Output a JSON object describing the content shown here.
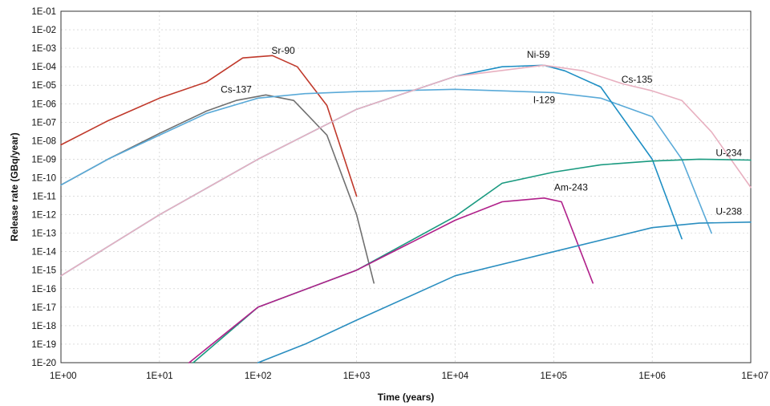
{
  "chart_data": {
    "type": "line",
    "title": "",
    "xlabel": "Time (years)",
    "ylabel": "Release rate (GBq/year)",
    "x_scale": "log",
    "y_scale": "log",
    "xlim": [
      1,
      10000000
    ],
    "ylim": [
      1e-20,
      0.1
    ],
    "grid": true,
    "x_ticks": [
      "1E+00",
      "1E+01",
      "1E+02",
      "1E+03",
      "1E+04",
      "1E+05",
      "1E+06",
      "1E+07"
    ],
    "y_ticks": [
      "1E-01",
      "1E-02",
      "1E-03",
      "1E-04",
      "1E-05",
      "1E-06",
      "1E-07",
      "1E-08",
      "1E-09",
      "1E-10",
      "1E-11",
      "1E-12",
      "1E-13",
      "1E-14",
      "1E-15",
      "1E-16",
      "1E-17",
      "1E-18",
      "1E-19",
      "1E-20"
    ],
    "series": [
      {
        "name": "Sr-90",
        "color": "#c0392b",
        "x": [
          1,
          3,
          10,
          30,
          70,
          140,
          250,
          500,
          1000
        ],
        "y": [
          6e-09,
          1.2e-07,
          2e-06,
          1.5e-05,
          0.0003,
          0.0004,
          0.0001,
          8e-07,
          1e-11
        ]
      },
      {
        "name": "Cs-137",
        "color": "#707070",
        "x": [
          1,
          3,
          10,
          30,
          60,
          120,
          230,
          500,
          1000,
          1500
        ],
        "y": [
          4e-11,
          1e-09,
          2.5e-08,
          4e-07,
          1.5e-06,
          3e-06,
          1.5e-06,
          2e-08,
          1e-12,
          2e-16
        ]
      },
      {
        "name": "I-129",
        "color": "#5aaad8",
        "x": [
          1,
          3,
          10,
          30,
          100,
          300,
          1000,
          10000,
          100000,
          300000,
          1000000,
          2000000,
          4000000
        ],
        "y": [
          4e-11,
          1e-09,
          2e-08,
          3e-07,
          2e-06,
          3.5e-06,
          4.5e-06,
          6e-06,
          4e-06,
          2e-06,
          2e-07,
          1e-09,
          1e-13
        ]
      },
      {
        "name": "Ni-59",
        "color": "#1f8fc4",
        "x": [
          1,
          10,
          100,
          1000,
          10000,
          30000,
          80000,
          130000,
          300000,
          1000000,
          2000000
        ],
        "y": [
          5e-16,
          1e-12,
          1e-09,
          5e-07,
          3e-05,
          0.0001,
          0.00012,
          6e-05,
          8e-06,
          1e-09,
          5e-14
        ]
      },
      {
        "name": "Cs-135",
        "color": "#e8b0c0",
        "x": [
          1,
          10,
          100,
          1000,
          10000,
          80000,
          200000,
          500000,
          1000000,
          2000000,
          4000000,
          10000000
        ],
        "y": [
          5e-16,
          1e-12,
          1e-09,
          5e-07,
          3e-05,
          0.00012,
          6e-05,
          1.2e-05,
          5e-06,
          1.5e-06,
          3e-08,
          3e-11
        ]
      },
      {
        "name": "U-234",
        "color": "#1a9a80",
        "x": [
          22,
          100,
          1000,
          10000,
          30000,
          100000,
          300000,
          1000000,
          3000000,
          10000000
        ],
        "y": [
          1e-20,
          1e-17,
          1e-15,
          8e-13,
          5e-11,
          2e-10,
          5e-10,
          8e-10,
          1e-09,
          9e-10
        ]
      },
      {
        "name": "Am-243",
        "color": "#b0208a",
        "x": [
          20,
          100,
          1000,
          10000,
          30000,
          80000,
          120000,
          250000
        ],
        "y": [
          1e-20,
          1e-17,
          1e-15,
          5e-13,
          5e-12,
          8e-12,
          5e-12,
          2e-16
        ]
      },
      {
        "name": "U-238",
        "color": "#2a8ec0",
        "x": [
          100,
          300,
          1000,
          10000,
          100000,
          1000000,
          3000000,
          10000000
        ],
        "y": [
          1e-20,
          1e-19,
          2e-18,
          5e-16,
          1e-14,
          2e-13,
          3.5e-13,
          4e-13
        ]
      }
    ],
    "annotations": [
      {
        "text": "Sr-90",
        "x": 180,
        "y": 0.0005
      },
      {
        "text": "Cs-137",
        "x": 60,
        "y": 4e-06
      },
      {
        "text": "Ni-59",
        "x": 70000,
        "y": 0.0003
      },
      {
        "text": "Cs-135",
        "x": 700000,
        "y": 1.4e-05
      },
      {
        "text": "I-129",
        "x": 80000,
        "y": 1.1e-06
      },
      {
        "text": "U-234",
        "x": 6000000,
        "y": 1.5e-09
      },
      {
        "text": "Am-243",
        "x": 150000,
        "y": 2e-11
      },
      {
        "text": "U-238",
        "x": 6000000,
        "y": 1e-12
      }
    ]
  }
}
